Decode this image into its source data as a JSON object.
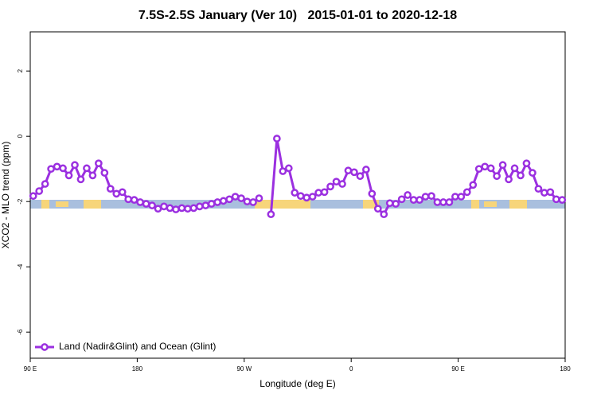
{
  "chart_data": {
    "type": "line",
    "title": "7.5S-2.5S January (Ver 10)   2015-01-01 to 2020-12-18",
    "x_label": "Longitude (deg E)",
    "y_label": "XCO2 - MLO trend (ppm)",
    "xlim": [
      90,
      540
    ],
    "xticks": [
      {
        "value": 90,
        "label": "90 E"
      },
      {
        "value": 180,
        "label": "180"
      },
      {
        "value": 270,
        "label": "90 W"
      },
      {
        "value": 360,
        "label": "0"
      },
      {
        "value": 450,
        "label": "90 E"
      },
      {
        "value": 540,
        "label": "180"
      }
    ],
    "ylim": [
      -6.8,
      3.2
    ],
    "yticks": [
      -6,
      -4,
      -2,
      0,
      2
    ],
    "legend": "bottom-left",
    "x": [
      92.5,
      97.5,
      102.5,
      107.5,
      112.5,
      117.5,
      122.5,
      127.5,
      132.5,
      137.5,
      142.5,
      147.5,
      152.5,
      157.5,
      162.5,
      167.5,
      172.5,
      177.5,
      182.5,
      187.5,
      192.5,
      197.5,
      202.5,
      207.5,
      212.5,
      217.5,
      222.5,
      227.5,
      232.5,
      237.5,
      242.5,
      247.5,
      252.5,
      257.5,
      262.5,
      267.5,
      272.5,
      277.5,
      282.5,
      287.5,
      292.5,
      297.5,
      302.5,
      307.5,
      312.5,
      317.5,
      322.5,
      327.5,
      332.5,
      337.5,
      342.5,
      347.5,
      352.5,
      357.5,
      362.5,
      367.5,
      372.5,
      377.5,
      382.5,
      387.5,
      392.5,
      397.5,
      402.5,
      407.5,
      412.5,
      417.5,
      422.5,
      427.5,
      432.5,
      437.5,
      442.5,
      447.5,
      452.5,
      457.5,
      462.5,
      467.5,
      472.5,
      477.5,
      482.5,
      487.5,
      492.5,
      497.5,
      502.5,
      507.5,
      512.5,
      517.5,
      522.5,
      527.5,
      532.5,
      537.5
    ],
    "series": [
      {
        "name": "Land (Nadir&Glint) and Ocean (Glint)",
        "color": "#9b30e0",
        "values": [
          -1.83,
          -1.68,
          -1.46,
          -1.0,
          -0.93,
          -0.98,
          -1.2,
          -0.88,
          -1.32,
          -0.98,
          -1.2,
          -0.83,
          -1.12,
          -1.61,
          -1.76,
          -1.71,
          -1.93,
          -1.95,
          -2.02,
          -2.07,
          -2.12,
          -2.22,
          -2.15,
          -2.2,
          -2.24,
          -2.2,
          -2.22,
          -2.2,
          -2.15,
          -2.12,
          -2.07,
          -2.02,
          -1.98,
          -1.93,
          -1.85,
          -1.9,
          -2.0,
          -2.02,
          -1.9,
          null,
          -2.39,
          -0.07,
          -1.07,
          -0.98,
          -1.73,
          -1.83,
          -1.88,
          -1.85,
          -1.73,
          -1.71,
          -1.54,
          -1.39,
          -1.46,
          -1.05,
          -1.1,
          -1.22,
          -1.02,
          -1.76,
          -2.22,
          -2.39,
          -2.05,
          -2.07,
          -1.93,
          -1.8,
          -1.95,
          -1.95,
          -1.85,
          -1.83,
          -2.02,
          -2.02,
          -2.02,
          -1.85,
          -1.85,
          -1.71,
          -1.49,
          -1.0,
          -0.93,
          -0.98,
          -1.22,
          -0.88,
          -1.32,
          -0.98,
          -1.2,
          -0.83,
          -1.12,
          -1.61,
          -1.73,
          -1.71,
          -1.93,
          -1.95
        ]
      }
    ]
  }
}
